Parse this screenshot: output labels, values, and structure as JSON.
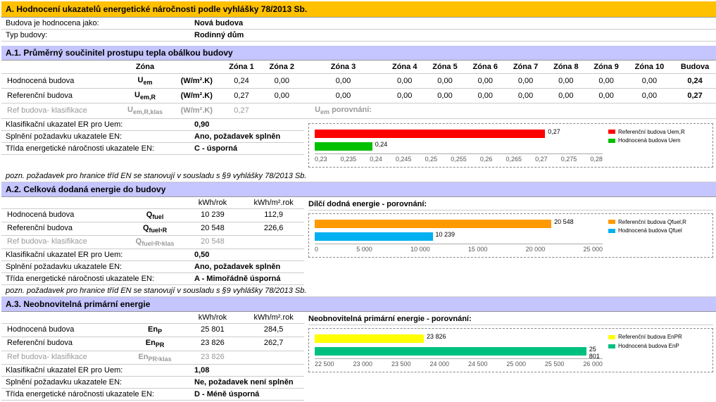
{
  "section_a": {
    "title": "A. Hodnocení ukazatelů energetické náročnosti podle vyhlášky 78/2013 Sb.",
    "rows": [
      {
        "label": "Budova je hodnocena jako:",
        "value": "Nová budova"
      },
      {
        "label": "Typ budovy:",
        "value": "Rodinný dům"
      }
    ]
  },
  "section_a1": {
    "title": "A.1. Průměrný součinitel prostupu tepla obálkou budovy",
    "columns": [
      "Zóna",
      "",
      "Zóna 1",
      "Zóna 2",
      "Zóna 3",
      "Zóna 4",
      "Zóna 5",
      "Zóna 6",
      "Zóna 7",
      "Zóna 8",
      "Zóna 9",
      "Zóna 10",
      "Budova"
    ],
    "unit": "(W/m².K)",
    "rows": [
      {
        "name": "Hodnocená budova",
        "sym": "Uem",
        "vals": [
          "0,24",
          "0,00",
          "0,00",
          "0,00",
          "0,00",
          "0,00",
          "0,00",
          "0,00",
          "0,00",
          "0,00"
        ],
        "total": "0,24"
      },
      {
        "name": "Referenční budova",
        "sym": "Uem,R",
        "vals": [
          "0,27",
          "0,00",
          "0,00",
          "0,00",
          "0,00",
          "0,00",
          "0,00",
          "0,00",
          "0,00",
          "0,00"
        ],
        "total": "0,27"
      },
      {
        "name": "Ref budova- klasifikace",
        "sym": "Uem,R,klas",
        "vals": [
          "0,27",
          "",
          "",
          "",
          "",
          "",
          "",
          "",
          "",
          ""
        ],
        "total": "",
        "gray": true
      }
    ],
    "compare_label": "Uem porovnání:",
    "underrows": [
      {
        "label": "Klasifikační ukazatel ER pro Uem:",
        "value": "0,90"
      },
      {
        "label": "Splnění požadavku ukazatele EN:",
        "value": "Ano, požadavek splněn"
      },
      {
        "label": "Třída energetické náročnosti ukazatele EN:",
        "value": "C - úsporná"
      }
    ],
    "note": "pozn. požadavek pro hranice tříd EN se stanovují v sousladu s §9 vyhlášky 78/2013 Sb.",
    "chart": {
      "type": "bar",
      "series": [
        {
          "label": "Referenční budova Uem,R",
          "color": "#ff0000",
          "value": 0.27,
          "text": "0,27"
        },
        {
          "label": "Hodnocená budova Uem",
          "color": "#00c000",
          "value": 0.24,
          "text": "0,24"
        }
      ],
      "xmin": 0.23,
      "xmax": 0.28,
      "ticks": [
        "0,23",
        "0,235",
        "0,24",
        "0,245",
        "0,25",
        "0,255",
        "0,26",
        "0,265",
        "0,27",
        "0,275",
        "0,28"
      ]
    }
  },
  "section_a2": {
    "title": "A.2. Celková dodaná energie do budovy",
    "cols": [
      "",
      "",
      "kWh/rok",
      "kWh/m².rok"
    ],
    "rows": [
      {
        "name": "Hodnocená budova",
        "sym": "Qfuel",
        "v1": "10 239",
        "v2": "112,9"
      },
      {
        "name": "Referenční budova",
        "sym": "Qfuel,R",
        "v1": "20 548",
        "v2": "226,6"
      },
      {
        "name": "Ref budova- klasifikace",
        "sym": "Qfuel,R,klas",
        "v1": "20 548",
        "v2": "",
        "gray": true
      }
    ],
    "underrows": [
      {
        "label": "Klasifikační ukazatel ER pro Uem:",
        "value": "0,50"
      },
      {
        "label": "Splnění požadavku ukazatele EN:",
        "value": "Ano, požadavek splněn"
      },
      {
        "label": "Třída energetické náročnosti ukazatele EN:",
        "value": "A - Mimořádně úsporná"
      }
    ],
    "note": "pozn. požadavek pro hranice tříd EN se stanovují v sousladu s §9 vyhlášky 78/2013 Sb.",
    "chart": {
      "title": "Dílčí dodná energie - porovnání:",
      "type": "bar",
      "series": [
        {
          "label": "Referenční budova Qfuel,R",
          "color": "#ff9900",
          "value": 20548,
          "text": "20 548"
        },
        {
          "label": "Hodnocená budova Qfuel",
          "color": "#00b0f0",
          "value": 10239,
          "text": "10 239"
        }
      ],
      "xmin": 0,
      "xmax": 25000,
      "ticks": [
        "0",
        "5 000",
        "10 000",
        "15 000",
        "20 000",
        "25 000"
      ]
    }
  },
  "section_a3": {
    "title": "A.3. Neobnovitelná primární energie",
    "cols": [
      "",
      "",
      "kWh/rok",
      "kWh/m².rok"
    ],
    "rows": [
      {
        "name": "Hodnocená budova",
        "sym": "EnP",
        "v1": "25 801",
        "v2": "284,5"
      },
      {
        "name": "Referenční budova",
        "sym": "EnPR",
        "v1": "23 826",
        "v2": "262,7"
      },
      {
        "name": "Ref budova- klasifikace",
        "sym": "EnPR,klas",
        "v1": "23 826",
        "v2": "",
        "gray": true
      }
    ],
    "underrows": [
      {
        "label": "Klasifikační ukazatel ER pro Uem:",
        "value": "1,08"
      },
      {
        "label": "Splnění požadavku ukazatele EN:",
        "value": "Ne, požadavek není splněn"
      },
      {
        "label": "Třída energetické náročnosti ukazatele EN:",
        "value": "D - Méně úsporná"
      }
    ],
    "chart": {
      "title": "Neobnovitelná primární energie - porovnání:",
      "type": "bar",
      "series": [
        {
          "label": "Referenční budova EnPR",
          "color": "#ffff00",
          "value": 23826,
          "text": "23 826"
        },
        {
          "label": "Hodnocená budova EnP",
          "color": "#00c080",
          "value": 25801,
          "text": "25 801"
        }
      ],
      "xmin": 22500,
      "xmax": 26000,
      "ticks": [
        "22 500",
        "23 000",
        "23 500",
        "24 000",
        "24 500",
        "25 000",
        "25 500",
        "26 000"
      ]
    }
  }
}
